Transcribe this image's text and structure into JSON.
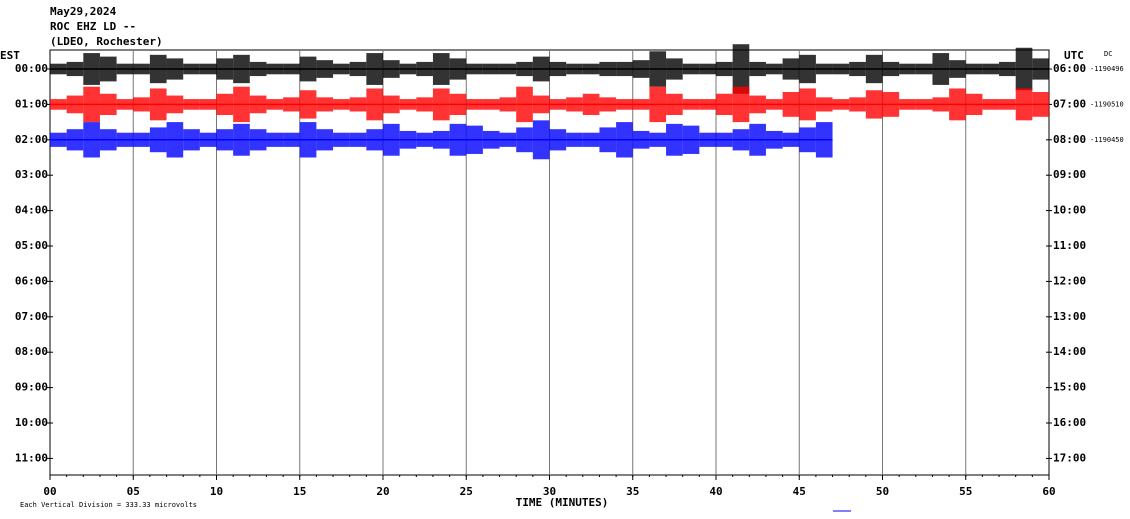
{
  "header": {
    "lines": [
      "May29,2024",
      "ROC EHZ LD --",
      "(LDEO, Rochester)"
    ]
  },
  "chart_data": {
    "type": "helicorder",
    "xlabel": "TIME (MINUTES)",
    "left_label": "EST",
    "right_label": "UTC",
    "dc_label": "DC",
    "xlim": [
      0,
      60
    ],
    "xticks": [
      {
        "value": 0,
        "label": "00"
      },
      {
        "value": 5,
        "label": "05"
      },
      10,
      15,
      20,
      25,
      30,
      35,
      40,
      45,
      50,
      55,
      60
    ],
    "rows_left": [
      "00:00",
      "01:00",
      "02:00",
      "03:00",
      "04:00",
      "05:00",
      "06:00",
      "07:00",
      "08:00",
      "09:00",
      "10:00",
      "11:00"
    ],
    "rows_right": [
      "06:00",
      "07:00",
      "08:00",
      "09:00",
      "10:00",
      "11:00",
      "12:00",
      "13:00",
      "14:00",
      "15:00",
      "16:00",
      "17:00"
    ],
    "traces": [
      {
        "color": "#000000",
        "dc": -1190496,
        "values": [
          0.15,
          0.2,
          0.45,
          0.35,
          0.15,
          0.15,
          0.4,
          0.3,
          0.15,
          0.15,
          0.3,
          0.4,
          0.2,
          0.15,
          0.15,
          0.35,
          0.25,
          0.15,
          0.2,
          0.45,
          0.25,
          0.15,
          0.2,
          0.45,
          0.3,
          0.15,
          0.15,
          0.15,
          0.2,
          0.35,
          0.2,
          0.15,
          0.15,
          0.2,
          0.2,
          0.25,
          0.5,
          0.3,
          0.15,
          0.15,
          0.2,
          0.7,
          0.2,
          0.15,
          0.3,
          0.4,
          0.15,
          0.15,
          0.2,
          0.4,
          0.2,
          0.15,
          0.15,
          0.45,
          0.25,
          0.15,
          0.15,
          0.2,
          0.6,
          0.3
        ]
      },
      {
        "color": "#ff0000",
        "dc": -1190510,
        "values": [
          0.15,
          0.25,
          0.5,
          0.3,
          0.15,
          0.2,
          0.45,
          0.25,
          0.15,
          0.15,
          0.3,
          0.5,
          0.25,
          0.15,
          0.2,
          0.4,
          0.2,
          0.15,
          0.2,
          0.45,
          0.25,
          0.15,
          0.2,
          0.45,
          0.3,
          0.15,
          0.15,
          0.2,
          0.5,
          0.25,
          0.15,
          0.2,
          0.3,
          0.2,
          0.15,
          0.15,
          0.5,
          0.3,
          0.15,
          0.15,
          0.3,
          0.5,
          0.25,
          0.15,
          0.35,
          0.45,
          0.2,
          0.15,
          0.2,
          0.4,
          0.35,
          0.15,
          0.15,
          0.2,
          0.45,
          0.3,
          0.15,
          0.15,
          0.45,
          0.35
        ]
      },
      {
        "color": "#0000ff",
        "dc": -1190450,
        "values": [
          0.2,
          0.3,
          0.5,
          0.3,
          0.2,
          0.2,
          0.35,
          0.5,
          0.3,
          0.2,
          0.3,
          0.45,
          0.3,
          0.2,
          0.2,
          0.5,
          0.3,
          0.2,
          0.2,
          0.3,
          0.45,
          0.25,
          0.2,
          0.25,
          0.45,
          0.4,
          0.25,
          0.2,
          0.35,
          0.55,
          0.3,
          0.2,
          0.2,
          0.35,
          0.5,
          0.25,
          0.2,
          0.45,
          0.4,
          0.2,
          0.2,
          0.3,
          0.45,
          0.25,
          0.2,
          0.35,
          0.5
        ]
      }
    ]
  },
  "footer": "Each Vertical Division =  333.33 microvolts"
}
